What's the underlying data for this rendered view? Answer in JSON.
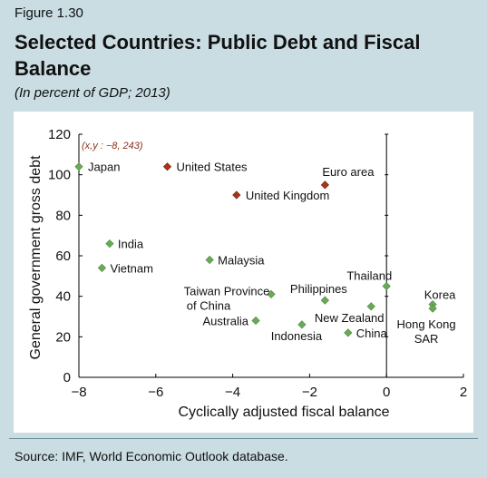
{
  "figure_label": "Figure 1.30",
  "title": "Selected Countries: Public Debt and Fiscal Balance",
  "subtitle": "(In percent of GDP; 2013)",
  "source": "Source: IMF, World Economic Outlook database.",
  "colors": {
    "background": "#c9dde3",
    "green": "#6aaa56",
    "red": "#a23618",
    "annotation": "#8b2e1a"
  },
  "chart_data": {
    "type": "scatter",
    "title": "",
    "xlabel": "Cyclically adjusted fiscal balance",
    "ylabel": "General government gross debt",
    "xlim": [
      -8,
      2
    ],
    "ylim": [
      0,
      120
    ],
    "xticks": [
      -8,
      -6,
      -4,
      -2,
      0,
      2
    ],
    "xtick_labels": [
      "−8",
      "−6",
      "−4",
      "−2",
      "0",
      "2"
    ],
    "yticks": [
      0,
      20,
      40,
      60,
      80,
      100,
      120
    ],
    "annotation": "(x,y : −8, 243)",
    "points": [
      {
        "label": "Japan",
        "x": -8.0,
        "y": 104,
        "group": "red_none",
        "color": "green"
      },
      {
        "label": "United States",
        "x": -5.7,
        "y": 104,
        "color": "red"
      },
      {
        "label": "Euro area",
        "x": -1.6,
        "y": 95,
        "color": "red"
      },
      {
        "label": "United Kingdom",
        "x": -3.9,
        "y": 90,
        "color": "red"
      },
      {
        "label": "India",
        "x": -7.2,
        "y": 66,
        "color": "green"
      },
      {
        "label": "Vietnam",
        "x": -7.4,
        "y": 54,
        "color": "green"
      },
      {
        "label": "Malaysia",
        "x": -4.6,
        "y": 58,
        "color": "green"
      },
      {
        "label": "Taiwan Province of China",
        "x": -3.0,
        "y": 41,
        "color": "green"
      },
      {
        "label": "Philippines",
        "x": -1.6,
        "y": 38,
        "color": "green"
      },
      {
        "label": "Thailand",
        "x": 0.0,
        "y": 45,
        "color": "green"
      },
      {
        "label": "Korea",
        "x": 1.2,
        "y": 36,
        "color": "green"
      },
      {
        "label": "Hong Kong SAR",
        "x": 1.2,
        "y": 34,
        "color": "green"
      },
      {
        "label": "New Zealand",
        "x": -0.4,
        "y": 35,
        "color": "green"
      },
      {
        "label": "Australia",
        "x": -3.4,
        "y": 28,
        "color": "green"
      },
      {
        "label": "Indonesia",
        "x": -2.2,
        "y": 26,
        "color": "green"
      },
      {
        "label": "China",
        "x": -1.0,
        "y": 22,
        "color": "green"
      }
    ]
  }
}
